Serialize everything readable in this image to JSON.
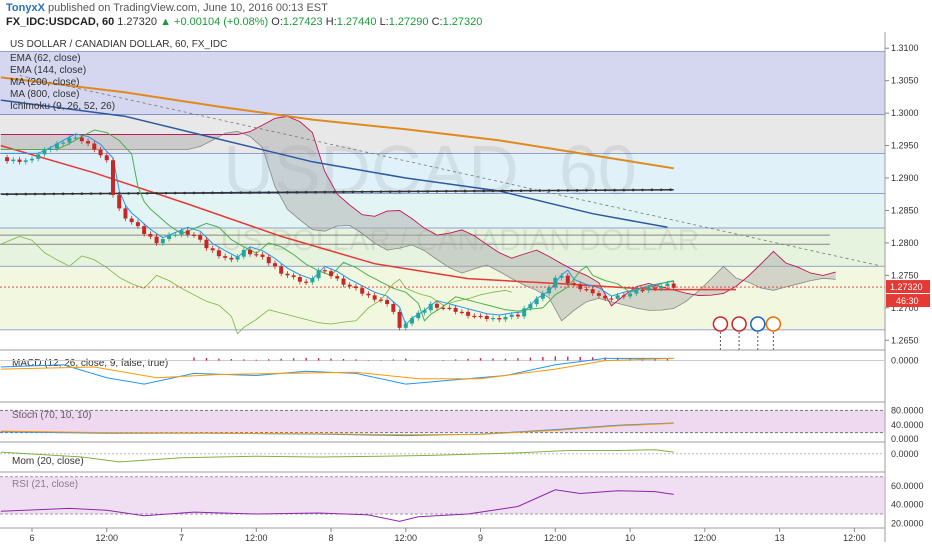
{
  "header": {
    "author": "TonyxX",
    "published_text": "published on TradingView.com, June 10, 2016 00:13 EST",
    "symbol_line": "FX_IDC:USDCAD, 60",
    "last": "1.27320",
    "change": "+0.00104 (+0.08%)",
    "open_label": "O:",
    "open": "1.27423",
    "high_label": "H:",
    "high": "1.27440",
    "low_label": "L:",
    "low": "1.27290",
    "close_label": "C:",
    "close": "1.27320"
  },
  "legend": {
    "title": "US DOLLAR / CANADIAN DOLLAR, 60, FX_IDC",
    "items": [
      "EMA (62, close)",
      "EMA (144, close)",
      "MA (200, close)",
      "MA (800, close)",
      "Ichimoku (9, 26, 52, 26)"
    ]
  },
  "watermark": {
    "symbol": "USDCAD",
    "interval": "60",
    "name": "US DOLLAR / CANADIAN DOLLAR"
  },
  "price_badges": {
    "last_price": "1.27320",
    "countdown": "46:30"
  },
  "panes": {
    "macd": {
      "label": "MACD (12, 26, close, 9, false, true)",
      "ticks": [
        "0.0000"
      ]
    },
    "stoch": {
      "label": "Stoch (70, 10, 10)",
      "ticks": [
        "80.0000",
        "40.0000",
        "0.0000"
      ]
    },
    "mom": {
      "label": "Mom (20, close)",
      "ticks": [
        "0.0000"
      ]
    },
    "rsi": {
      "label": "RSI (21, close)",
      "ticks": [
        "60.0000",
        "40.0000",
        "20.0000"
      ]
    }
  },
  "time_axis": {
    "labels": [
      {
        "t": 0,
        "text": "6"
      },
      {
        "t": 12,
        "text": "12:00"
      },
      {
        "t": 24,
        "text": "7"
      },
      {
        "t": 36,
        "text": "12:00"
      },
      {
        "t": 48,
        "text": "8"
      },
      {
        "t": 60,
        "text": "12:00"
      },
      {
        "t": 72,
        "text": "9"
      },
      {
        "t": 84,
        "text": "12:00"
      },
      {
        "t": 96,
        "text": "10"
      },
      {
        "t": 108,
        "text": "12:00"
      },
      {
        "t": 120,
        "text": "13"
      },
      {
        "t": 132,
        "text": "12:00"
      }
    ]
  },
  "colors": {
    "ema62": "#e53935",
    "ema144": "#2c5aa0",
    "ma200": "#e08a1e",
    "ma800": "#333333",
    "tenkan": "#2196f3",
    "kijun": "#4caf50",
    "lagging": "#7cb342",
    "cloud_bull": "#a8a8a8",
    "cloud_bear": "#c2185b",
    "up_candle": "#26a69a",
    "down_candle": "#c62828",
    "macd_line": "#2196f3",
    "signal_line": "#ff9800",
    "histogram": "#d81b60",
    "stoch_k": "#2196f3",
    "stoch_d": "#ff9800",
    "mom": "#7cb342",
    "rsi": "#8e24aa"
  },
  "chart_data": {
    "type": "candlestick",
    "title": "US DOLLAR / CANADIAN DOLLAR, 60, FX_IDC",
    "x_unit": "hours from Jun 6 00:00 (trading hours)",
    "ylim": [
      1.2635,
      1.3125
    ],
    "y_ticks": [
      1.31,
      1.305,
      1.3,
      1.295,
      1.29,
      1.285,
      1.28,
      1.275,
      1.27,
      1.265
    ],
    "fib_levels": [
      1.3095,
      1.2998,
      1.2938,
      1.2876,
      1.2823,
      1.2764,
      1.2666
    ],
    "fib_band_colors": [
      "#c5cae9",
      "#e0e0e0",
      "#d6ecf7",
      "#d8f0ef",
      "#dcefd4",
      "#eef5d6",
      "#f8d6d6"
    ],
    "sr_lines": [
      1.2812,
      1.2798
    ],
    "close_series": [
      [
        0,
        1.2932
      ],
      [
        2,
        1.2941
      ],
      [
        4,
        1.2952
      ],
      [
        6,
        1.2962
      ],
      [
        8,
        1.2958
      ],
      [
        10,
        1.2946
      ],
      [
        11,
        1.2935
      ],
      [
        12,
        1.2925
      ],
      [
        13,
        1.2875
      ],
      [
        14,
        1.2852
      ],
      [
        15,
        1.284
      ],
      [
        16,
        1.2832
      ],
      [
        18,
        1.2815
      ],
      [
        20,
        1.2802
      ],
      [
        22,
        1.281
      ],
      [
        24,
        1.2818
      ],
      [
        26,
        1.2812
      ],
      [
        28,
        1.2793
      ],
      [
        30,
        1.2782
      ],
      [
        32,
        1.2772
      ],
      [
        34,
        1.2788
      ],
      [
        36,
        1.2782
      ],
      [
        38,
        1.277
      ],
      [
        40,
        1.2755
      ],
      [
        42,
        1.2745
      ],
      [
        44,
        1.2738
      ],
      [
        46,
        1.2758
      ],
      [
        48,
        1.275
      ],
      [
        50,
        1.2738
      ],
      [
        52,
        1.2728
      ],
      [
        54,
        1.2718
      ],
      [
        56,
        1.2712
      ],
      [
        58,
        1.2695
      ],
      [
        59,
        1.2668
      ],
      [
        60,
        1.2678
      ],
      [
        62,
        1.269
      ],
      [
        64,
        1.2705
      ],
      [
        66,
        1.27
      ],
      [
        68,
        1.2695
      ],
      [
        70,
        1.269
      ],
      [
        72,
        1.2685
      ],
      [
        74,
        1.2683
      ],
      [
        76,
        1.2686
      ],
      [
        78,
        1.2688
      ],
      [
        80,
        1.2708
      ],
      [
        82,
        1.272
      ],
      [
        84,
        1.2745
      ],
      [
        85,
        1.2752
      ],
      [
        86,
        1.2738
      ],
      [
        88,
        1.273
      ],
      [
        90,
        1.2725
      ],
      [
        92,
        1.2712
      ],
      [
        94,
        1.2718
      ],
      [
        96,
        1.2722
      ],
      [
        98,
        1.2728
      ],
      [
        100,
        1.2732
      ],
      [
        102,
        1.2735
      ],
      [
        103,
        1.2732
      ]
    ],
    "series": [
      {
        "name": "EMA (62, close)",
        "points": [
          [
            -5,
            1.295
          ],
          [
            10,
            1.2908
          ],
          [
            25,
            1.286
          ],
          [
            40,
            1.281
          ],
          [
            55,
            1.2768
          ],
          [
            70,
            1.2745
          ],
          [
            85,
            1.2737
          ],
          [
            100,
            1.2728
          ],
          [
            113,
            1.2728
          ]
        ]
      },
      {
        "name": "EMA (144, close)",
        "points": [
          [
            -5,
            1.302
          ],
          [
            15,
            1.2995
          ],
          [
            30,
            1.296
          ],
          [
            45,
            1.2925
          ],
          [
            60,
            1.29
          ],
          [
            75,
            1.288
          ],
          [
            90,
            1.2845
          ],
          [
            102,
            1.2824
          ]
        ]
      },
      {
        "name": "MA (200, close)",
        "points": [
          [
            -5,
            1.3055
          ],
          [
            15,
            1.3032
          ],
          [
            30,
            1.301
          ],
          [
            45,
            1.299
          ],
          [
            60,
            1.2975
          ],
          [
            75,
            1.2958
          ],
          [
            90,
            1.2935
          ],
          [
            103,
            1.2915
          ]
        ]
      },
      {
        "name": "MA (800, close)",
        "points": [
          [
            -5,
            1.2875
          ],
          [
            103,
            1.2882
          ]
        ]
      }
    ],
    "macd": {
      "ylim": [
        -0.0035,
        0.0008
      ],
      "macd": [
        [
          -5,
          -0.0006
        ],
        [
          5,
          -0.0004
        ],
        [
          12,
          -0.0016
        ],
        [
          18,
          -0.0022
        ],
        [
          26,
          -0.0012
        ],
        [
          36,
          -0.0014
        ],
        [
          44,
          -0.001
        ],
        [
          52,
          -0.0012
        ],
        [
          60,
          -0.0022
        ],
        [
          68,
          -0.0018
        ],
        [
          76,
          -0.0014
        ],
        [
          84,
          -0.0004
        ],
        [
          92,
          0.0002
        ],
        [
          103,
          0.0002
        ]
      ],
      "signal": [
        [
          -5,
          -0.0008
        ],
        [
          10,
          -0.0006
        ],
        [
          20,
          -0.0016
        ],
        [
          30,
          -0.0013
        ],
        [
          40,
          -0.0012
        ],
        [
          52,
          -0.0011
        ],
        [
          62,
          -0.0017
        ],
        [
          72,
          -0.0017
        ],
        [
          84,
          -0.0008
        ],
        [
          92,
          0.0
        ],
        [
          103,
          0.0002
        ]
      ]
    },
    "stoch": {
      "ylim": [
        0,
        100
      ],
      "k": [
        [
          -5,
          22
        ],
        [
          12,
          18
        ],
        [
          30,
          18
        ],
        [
          46,
          16
        ],
        [
          60,
          12
        ],
        [
          72,
          16
        ],
        [
          84,
          28
        ],
        [
          94,
          40
        ],
        [
          103,
          46
        ]
      ],
      "d": [
        [
          -5,
          24
        ],
        [
          12,
          20
        ],
        [
          30,
          18
        ],
        [
          46,
          17
        ],
        [
          60,
          14
        ],
        [
          72,
          15
        ],
        [
          84,
          26
        ],
        [
          94,
          38
        ],
        [
          103,
          45
        ]
      ]
    },
    "mom": {
      "ylim": [
        -0.02,
        0.012
      ],
      "values": [
        [
          -5,
          0.002
        ],
        [
          8,
          -0.004
        ],
        [
          14,
          -0.01
        ],
        [
          24,
          -0.005
        ],
        [
          36,
          -0.003
        ],
        [
          46,
          -0.004
        ],
        [
          56,
          -0.003
        ],
        [
          64,
          -0.002
        ],
        [
          78,
          0.001
        ],
        [
          86,
          0.004
        ],
        [
          94,
          0.004
        ],
        [
          100,
          0.005
        ],
        [
          103,
          0.002
        ]
      ]
    },
    "rsi": {
      "ylim": [
        16,
        74
      ],
      "values": [
        [
          -5,
          33
        ],
        [
          6,
          36
        ],
        [
          12,
          34
        ],
        [
          18,
          28
        ],
        [
          26,
          32
        ],
        [
          36,
          30
        ],
        [
          46,
          31
        ],
        [
          54,
          29
        ],
        [
          59,
          22
        ],
        [
          62,
          27
        ],
        [
          70,
          30
        ],
        [
          78,
          38
        ],
        [
          84,
          56
        ],
        [
          88,
          52
        ],
        [
          94,
          55
        ],
        [
          100,
          54
        ],
        [
          103,
          51
        ]
      ]
    }
  }
}
